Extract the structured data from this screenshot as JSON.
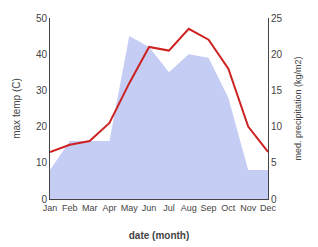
{
  "chart_data": {
    "type": "line",
    "xlabel": "date (month)",
    "ylabel": "max temp (C)",
    "y2label": "med. precipitation (kg/m2)",
    "categories": [
      "Jan",
      "Feb",
      "Mar",
      "Apr",
      "May",
      "Jun",
      "Jul",
      "Aug",
      "Sep",
      "Oct",
      "Nov",
      "Dec"
    ],
    "series": [
      {
        "type": "area",
        "color": "#c5cdf5",
        "values": [
          8,
          16,
          16,
          16,
          45,
          42,
          35,
          40,
          39,
          28,
          8,
          8
        ]
      },
      {
        "type": "line",
        "color": "#cc2222",
        "values": [
          13,
          15,
          16,
          21,
          32,
          42,
          41,
          47,
          44,
          36,
          20,
          13
        ]
      }
    ],
    "ylim": [
      0,
      50
    ],
    "yticks": [
      0,
      10,
      20,
      30,
      40,
      50
    ],
    "y2lim": [
      0,
      25
    ],
    "y2ticks": [
      0,
      5,
      10,
      15,
      20,
      25
    ],
    "grid": false
  }
}
